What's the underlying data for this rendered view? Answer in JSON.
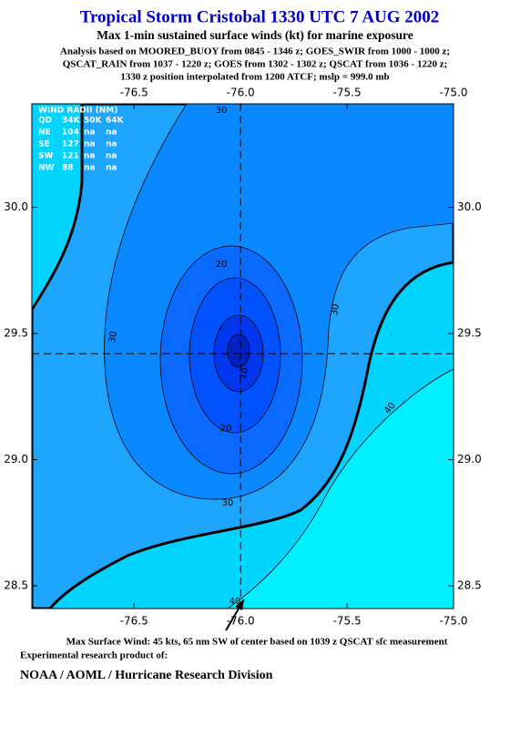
{
  "header": {
    "title": "Tropical Storm Cristobal 1330 UTC 7 AUG 2002",
    "subtitle": "Max 1-min sustained surface winds (kt) for marine exposure",
    "analysis": [
      "Analysis based on  MOORED_BUOY from 0845 - 1346 z;  GOES_SWIR from 1000 - 1000 z;",
      "QSCAT_RAIN from 1037 - 1220 z;  GOES from 1302 - 1302 z;  QSCAT from 1036 - 1220 z;",
      "1330 z position interpolated from 1200 ATCF; mslp = 999.0 mb"
    ]
  },
  "map": {
    "xlim": [
      -76.98,
      -75.0
    ],
    "ylim": [
      28.41,
      30.41
    ],
    "xticks": [
      -76.5,
      {
        "value": -76.0,
        "label": "-76.0"
      },
      -75.5,
      {
        "value": -75.0,
        "label": "-75.0"
      }
    ],
    "yticks": [
      {
        "value": 28.5,
        "label": "28.5"
      },
      {
        "value": 29.0,
        "label": "29.0"
      },
      29.5,
      {
        "value": 30.0,
        "label": "30.0"
      }
    ],
    "center": [
      -76.0,
      29.42
    ],
    "contour_labels": [
      30,
      30,
      30,
      20,
      10,
      20,
      30,
      40,
      40
    ]
  },
  "wind_radii": {
    "title": "WIND RADII (NM)",
    "columns": [
      "QD",
      "34K",
      "50K",
      "64K"
    ],
    "rows": [
      [
        "NE",
        104,
        "na",
        "na"
      ],
      [
        "SE",
        127,
        "na",
        "na"
      ],
      [
        "SW",
        121,
        "na",
        "na"
      ],
      [
        "NW",
        88,
        "na",
        "na"
      ]
    ]
  },
  "footer": {
    "max_wind": "Max Surface Wind: 45 kts, 65 nm SW of center based on 1039 z QSCAT sfc measurement",
    "note": "Experimental research product of:",
    "org": "NOAA / AOML / Hurricane Research Division"
  }
}
